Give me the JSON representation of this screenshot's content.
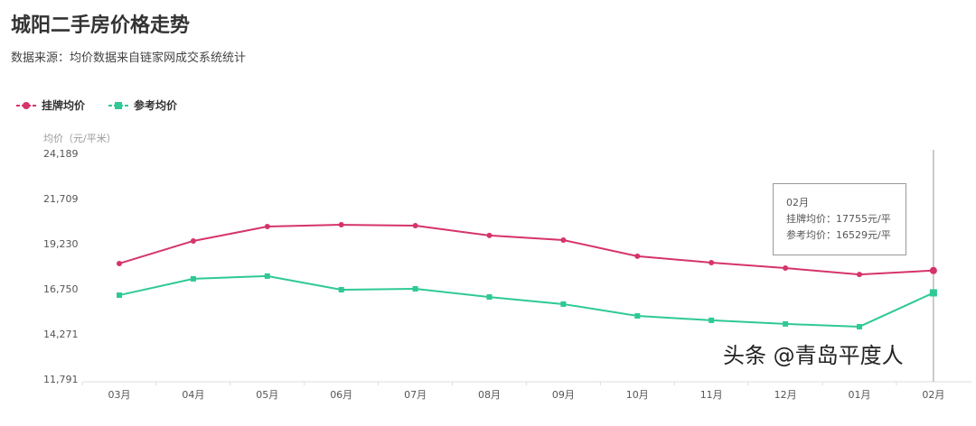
{
  "header": {
    "title": "城阳二手房价格走势",
    "subtitle": "数据来源：均价数据来自链家网成交系统统计"
  },
  "watermark": "头条 @青岛平度人",
  "tooltip": {
    "month": "02月",
    "line1": "挂牌均价：17755元/平",
    "line2": "参考均价：16529元/平"
  },
  "chart_data": {
    "type": "line",
    "ylabel": "均价（元/平米）",
    "ylim": [
      11791,
      24189
    ],
    "yticks": [
      "24,189",
      "21,709",
      "19,230",
      "16,750",
      "14,271",
      "11,791"
    ],
    "ytick_values": [
      24189,
      21709,
      19230,
      16750,
      14271,
      11791
    ],
    "categories": [
      "03月",
      "04月",
      "05月",
      "06月",
      "07月",
      "08月",
      "09月",
      "10月",
      "11月",
      "12月",
      "01月",
      "02月"
    ],
    "grid": false,
    "legend": "top-left",
    "series": [
      {
        "name": "挂牌均价",
        "color": "#d6336c",
        "marker": "circle",
        "values": [
          18140,
          19380,
          20170,
          20270,
          20220,
          19680,
          19430,
          18540,
          18190,
          17890,
          17540,
          17755
        ]
      },
      {
        "name": "参考均价",
        "color": "#2ec995",
        "marker": "square",
        "values": [
          16400,
          17300,
          17450,
          16700,
          16750,
          16300,
          15910,
          15260,
          15020,
          14820,
          14670,
          16529
        ]
      }
    ]
  }
}
